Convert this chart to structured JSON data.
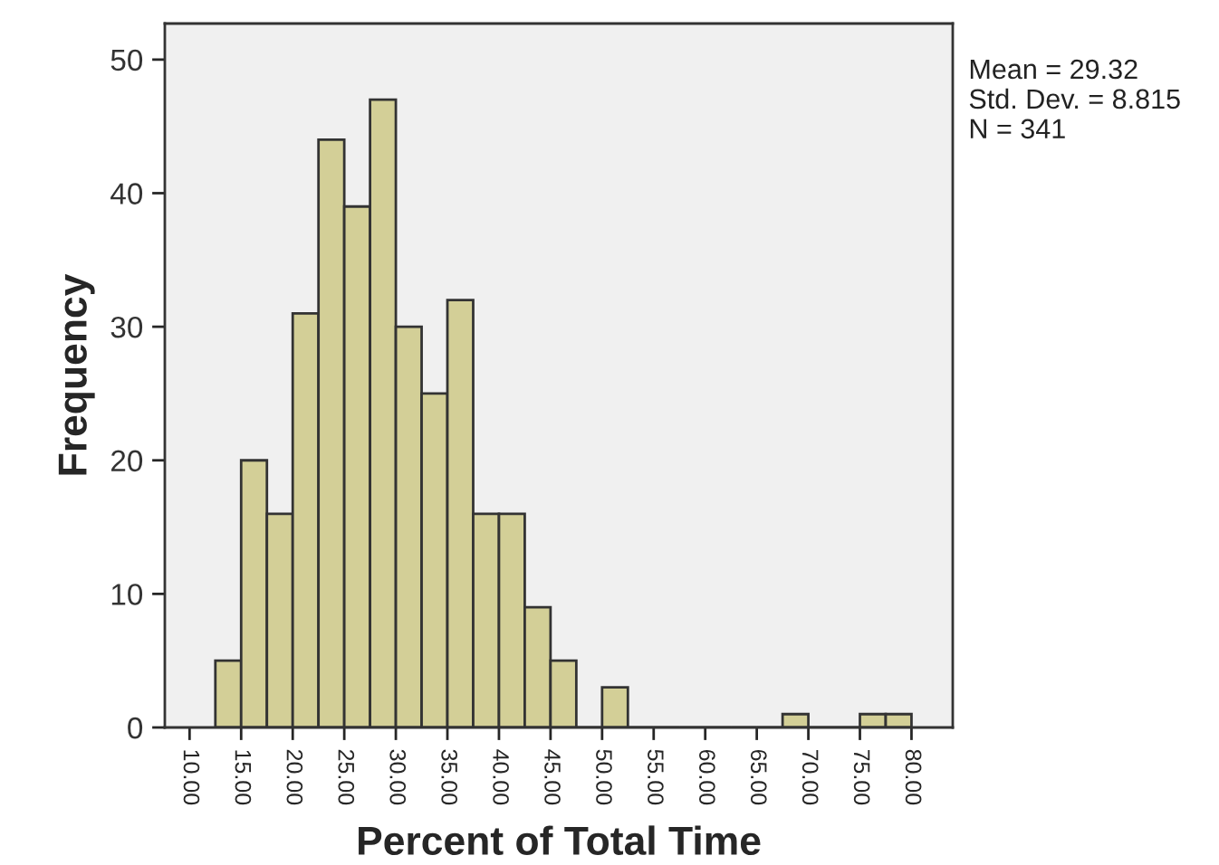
{
  "chart_data": {
    "type": "histogram",
    "xlabel": "Percent of Total Time",
    "ylabel": "Frequency",
    "bins": [
      12.5,
      15,
      17.5,
      20,
      22.5,
      25,
      27.5,
      30,
      32.5,
      35,
      37.5,
      40,
      42.5,
      45,
      47.5,
      50,
      52.5,
      55,
      57.5,
      60,
      62.5,
      65,
      67.5,
      70,
      72.5,
      75,
      77.5,
      80
    ],
    "values": [
      5,
      20,
      16,
      31,
      44,
      39,
      47,
      30,
      25,
      32,
      16,
      16,
      9,
      5,
      0,
      3,
      0,
      0,
      0,
      0,
      0,
      0,
      1,
      0,
      0,
      1,
      1
    ],
    "color": "#d3cf97",
    "xlim": [
      7.6,
      84
    ],
    "xticks": [
      {
        "value": 10,
        "label": "10.00"
      },
      {
        "value": 15,
        "label": "15.00"
      },
      {
        "value": 20,
        "label": "20.00"
      },
      {
        "value": 25,
        "label": "25.00"
      },
      {
        "value": 30,
        "label": "30.00"
      },
      {
        "value": 35,
        "label": "35.00"
      },
      {
        "value": 40,
        "label": "40.00"
      },
      {
        "value": 45,
        "label": "45.00"
      },
      {
        "value": 50,
        "label": "50.00"
      },
      {
        "value": 55,
        "label": "55.00"
      },
      {
        "value": 60,
        "label": "60.00"
      },
      {
        "value": 65,
        "label": "65.00"
      },
      {
        "value": 70,
        "label": "70.00"
      },
      {
        "value": 75,
        "label": "75.00"
      },
      {
        "value": 80,
        "label": "80.00"
      }
    ],
    "ylim": [
      0,
      52.7
    ],
    "yticks": [
      0,
      10,
      20,
      30,
      40,
      50
    ],
    "grid": false,
    "annotations": [
      "Mean = 29.32\nStd. Dev. = 8.815\nN = 341"
    ]
  }
}
